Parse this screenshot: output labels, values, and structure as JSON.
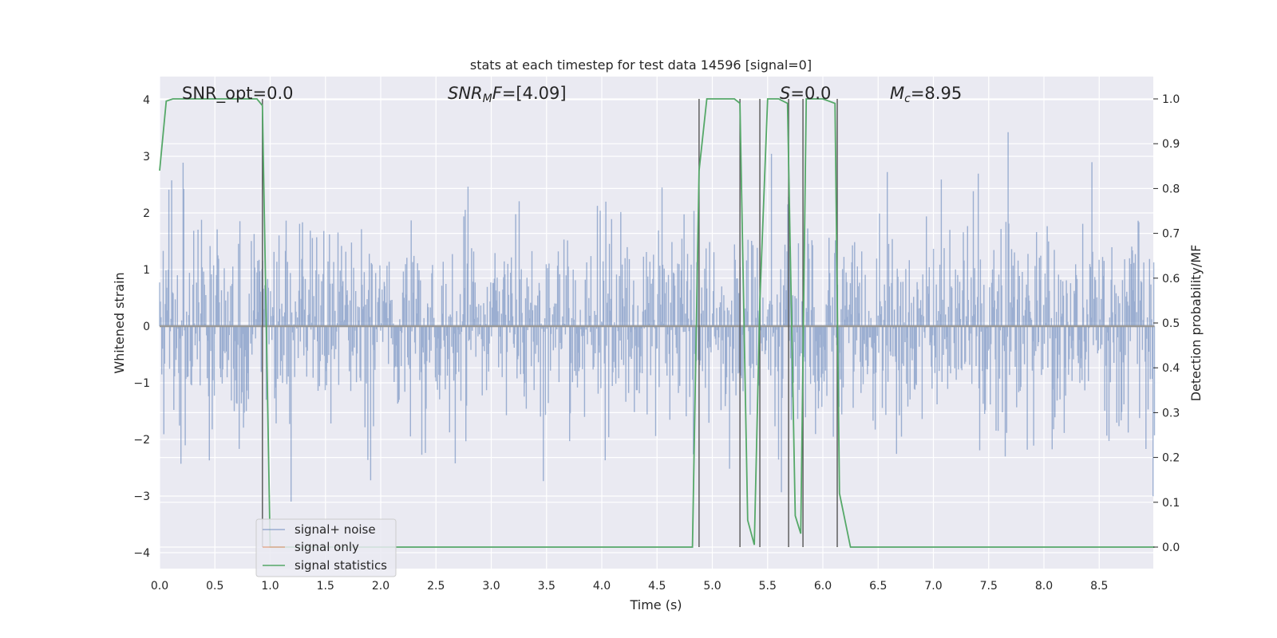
{
  "chart_data": {
    "type": "line",
    "title": "stats at each timestep for test data 14596 [signal=0]",
    "xlabel": "Time (s)",
    "ylabel_left": "Whitened strain",
    "ylabel_right": "Detection probability/MF",
    "xlim": [
      0.0,
      9.0
    ],
    "ylim_left": [
      -4.3,
      4.4
    ],
    "ylim_right": [
      -0.05,
      1.045
    ],
    "x_ticks": [
      "0.0",
      "0.5",
      "1.0",
      "1.5",
      "2.0",
      "2.5",
      "3.0",
      "3.5",
      "4.0",
      "4.5",
      "5.0",
      "5.5",
      "6.0",
      "6.5",
      "7.0",
      "7.5",
      "8.0",
      "8.5"
    ],
    "y_ticks_left": [
      "4",
      "3",
      "2",
      "1",
      "0",
      "−1",
      "−2",
      "−3",
      "−4"
    ],
    "y_ticks_right": [
      "1.0",
      "0.9",
      "0.8",
      "0.7",
      "0.6",
      "0.5",
      "0.4",
      "0.3",
      "0.2",
      "0.1",
      "0.0"
    ],
    "grid": true,
    "legend_position": "lower-left",
    "annotations": [
      {
        "label": "SNR_opt",
        "value": "=0.0"
      },
      {
        "label": "SNR_MF",
        "value": "=[4.09]"
      },
      {
        "label": "S",
        "value": "=0.0"
      },
      {
        "label": "M_c",
        "value": "=8.95"
      }
    ],
    "series": [
      {
        "name": "signal+ noise",
        "color": "#4c72b0",
        "axis": "left",
        "kind": "noise",
        "amplitude_std": 0.9,
        "range": [
          -3.9,
          4.0
        ]
      },
      {
        "name": "signal only",
        "color": "#dd8452",
        "axis": "left",
        "x": [
          0.0,
          9.0
        ],
        "y": [
          0.0,
          0.0
        ]
      },
      {
        "name": "signal statistics",
        "color": "#55a868",
        "axis": "right",
        "x": [
          0.0,
          0.06,
          0.12,
          0.5,
          0.88,
          0.93,
          1.0,
          1.05,
          1.5,
          2.0,
          3.0,
          4.0,
          4.5,
          4.82,
          4.88,
          4.95,
          5.2,
          5.25,
          5.32,
          5.38,
          5.43,
          5.5,
          5.6,
          5.68,
          5.75,
          5.8,
          5.85,
          6.0,
          6.11,
          6.15,
          6.25,
          7.0,
          8.0,
          9.0
        ],
        "y": [
          0.84,
          0.995,
          1.0,
          1.0,
          1.0,
          0.985,
          0.0,
          0.0,
          0.0,
          0.0,
          0.0,
          0.0,
          0.0,
          0.0,
          0.84,
          1.0,
          1.0,
          0.99,
          0.06,
          0.005,
          0.55,
          1.0,
          1.0,
          0.99,
          0.07,
          0.03,
          1.0,
          1.0,
          0.99,
          0.12,
          0.0,
          0.0,
          0.0,
          0.0
        ]
      }
    ],
    "vlines": [
      0.93,
      4.88,
      5.25,
      5.43,
      5.69,
      5.82,
      6.13
    ]
  }
}
